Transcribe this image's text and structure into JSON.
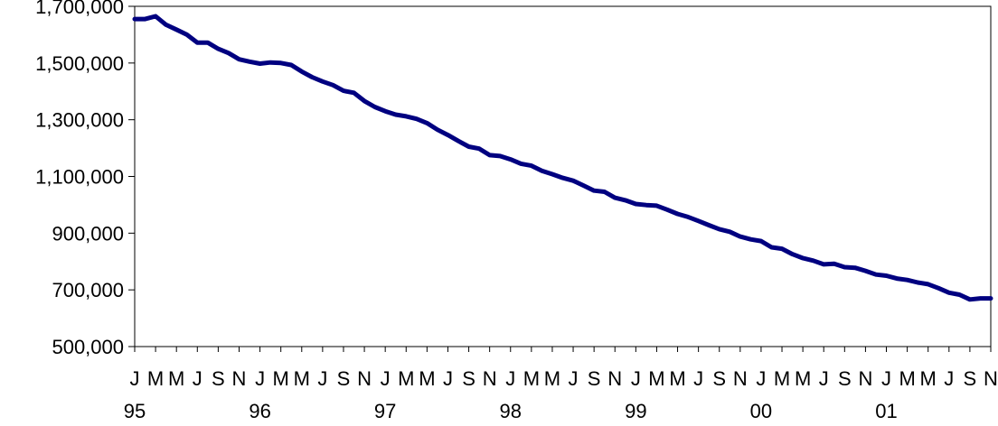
{
  "chart_data": {
    "type": "line",
    "title": "",
    "xlabel": "",
    "ylabel": "",
    "ylim": [
      500000,
      1700000
    ],
    "y_ticks": [
      "500,000",
      "700,000",
      "900,000",
      "1,100,000",
      "1,300,000",
      "1,500,000",
      "1,700,000"
    ],
    "y_tick_values": [
      500000,
      700000,
      900000,
      1100000,
      1300000,
      1500000,
      1700000
    ],
    "month_tick_labels": [
      "J",
      "M",
      "M",
      "J",
      "S",
      "N",
      "J",
      "M",
      "M",
      "J",
      "S",
      "N",
      "J",
      "M",
      "M",
      "J",
      "S",
      "N",
      "J",
      "M",
      "M",
      "J",
      "S",
      "N",
      "J",
      "M",
      "M",
      "J",
      "S",
      "N",
      "J",
      "M",
      "M",
      "J",
      "S",
      "N",
      "J",
      "M",
      "M",
      "J",
      "S",
      "N"
    ],
    "year_labels": [
      "95",
      "96",
      "97",
      "98",
      "99",
      "00",
      "01"
    ],
    "grid": false,
    "legend": "none",
    "colors": {
      "series": "#000080"
    },
    "series": [
      {
        "values": [
          1655000,
          1655000,
          1665000,
          1635000,
          1618000,
          1600000,
          1572000,
          1572000,
          1550000,
          1535000,
          1513000,
          1505000,
          1498000,
          1502000,
          1500000,
          1493000,
          1470000,
          1450000,
          1435000,
          1422000,
          1402000,
          1395000,
          1366000,
          1345000,
          1330000,
          1318000,
          1312000,
          1303000,
          1288000,
          1265000,
          1246000,
          1225000,
          1205000,
          1198000,
          1175000,
          1172000,
          1160000,
          1145000,
          1138000,
          1120000,
          1108000,
          1095000,
          1085000,
          1068000,
          1050000,
          1046000,
          1025000,
          1016000,
          1003000,
          999000,
          997000,
          983000,
          968000,
          957000,
          943000,
          928000,
          914000,
          905000,
          888000,
          878000,
          872000,
          850000,
          845000,
          826000,
          812000,
          803000,
          790000,
          792000,
          780000,
          778000,
          767000,
          754000,
          750000,
          740000,
          735000,
          726000,
          720000,
          706000,
          690000,
          683000,
          666000,
          670000,
          670000
        ]
      }
    ]
  }
}
